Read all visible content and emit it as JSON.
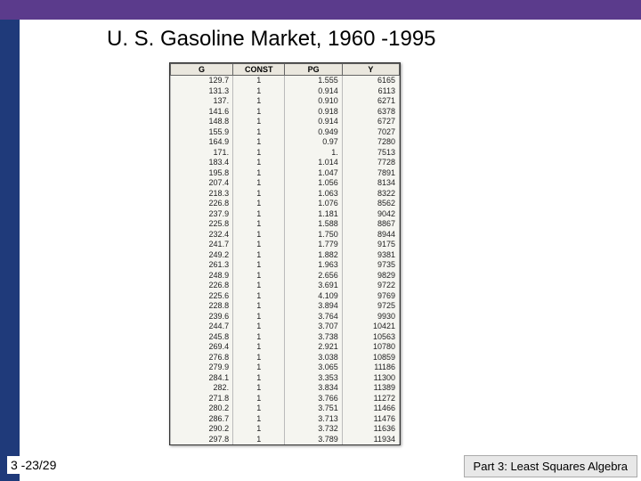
{
  "title": "U. S. Gasoline Market, 1960 -1995",
  "footer_left": "3 -23/29",
  "footer_right": "Part 3: Least Squares Algebra",
  "table": {
    "columns": [
      "G",
      "CONST",
      "PG",
      "Y"
    ],
    "rows": [
      [
        "129.7",
        "1",
        "1.555",
        "6165"
      ],
      [
        "131.3",
        "1",
        "0.914",
        "6113"
      ],
      [
        "137.",
        "1",
        "0.910",
        "6271"
      ],
      [
        "141.6",
        "1",
        "0.918",
        "6378"
      ],
      [
        "148.8",
        "1",
        "0.914",
        "6727"
      ],
      [
        "155.9",
        "1",
        "0.949",
        "7027"
      ],
      [
        "164.9",
        "1",
        "0.97",
        "7280"
      ],
      [
        "171.",
        "1",
        "1.",
        "7513"
      ],
      [
        "183.4",
        "1",
        "1.014",
        "7728"
      ],
      [
        "195.8",
        "1",
        "1.047",
        "7891"
      ],
      [
        "207.4",
        "1",
        "1.056",
        "8134"
      ],
      [
        "218.3",
        "1",
        "1.063",
        "8322"
      ],
      [
        "226.8",
        "1",
        "1.076",
        "8562"
      ],
      [
        "237.9",
        "1",
        "1.181",
        "9042"
      ],
      [
        "225.8",
        "1",
        "1.588",
        "8867"
      ],
      [
        "232.4",
        "1",
        "1.750",
        "8944"
      ],
      [
        "241.7",
        "1",
        "1.779",
        "9175"
      ],
      [
        "249.2",
        "1",
        "1.882",
        "9381"
      ],
      [
        "261.3",
        "1",
        "1.963",
        "9735"
      ],
      [
        "248.9",
        "1",
        "2.656",
        "9829"
      ],
      [
        "226.8",
        "1",
        "3.691",
        "9722"
      ],
      [
        "225.6",
        "1",
        "4.109",
        "9769"
      ],
      [
        "228.8",
        "1",
        "3.894",
        "9725"
      ],
      [
        "239.6",
        "1",
        "3.764",
        "9930"
      ],
      [
        "244.7",
        "1",
        "3.707",
        "10421"
      ],
      [
        "245.8",
        "1",
        "3.738",
        "10563"
      ],
      [
        "269.4",
        "1",
        "2.921",
        "10780"
      ],
      [
        "276.8",
        "1",
        "3.038",
        "10859"
      ],
      [
        "279.9",
        "1",
        "3.065",
        "11186"
      ],
      [
        "284.1",
        "1",
        "3.353",
        "11300"
      ],
      [
        "282.",
        "1",
        "3.834",
        "11389"
      ],
      [
        "271.8",
        "1",
        "3.766",
        "11272"
      ],
      [
        "280.2",
        "1",
        "3.751",
        "11466"
      ],
      [
        "286.7",
        "1",
        "3.713",
        "11476"
      ],
      [
        "290.2",
        "1",
        "3.732",
        "11636"
      ],
      [
        "297.8",
        "1",
        "3.789",
        "11934"
      ]
    ]
  }
}
